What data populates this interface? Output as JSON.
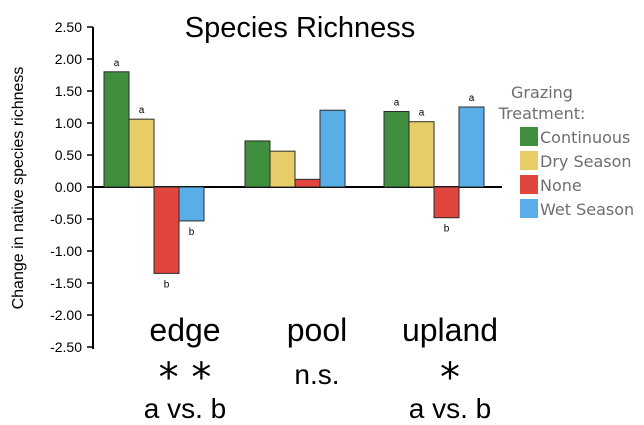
{
  "chart_data": {
    "type": "bar",
    "title": "Species Richness",
    "ylabel": "Change in native species richness",
    "xlabel": "",
    "ylim": [
      -2.5,
      2.5
    ],
    "yticks": [
      "2.50",
      "2.00",
      "1.50",
      "1.00",
      "0.50",
      "0.00",
      "-0.50",
      "-1.00",
      "-1.50",
      "-2.00",
      "-2.50"
    ],
    "ytick_values": [
      2.5,
      2.0,
      1.5,
      1.0,
      0.5,
      0.0,
      -0.5,
      -1.0,
      -1.5,
      -2.0,
      -2.5
    ],
    "categories": [
      "edge",
      "pool",
      "upland"
    ],
    "legend": {
      "title": "Grazing Treatment:",
      "placement": "right"
    },
    "series": [
      {
        "name": "Continuous",
        "color": "#3f8f3f",
        "values": [
          1.8,
          0.72,
          1.18
        ],
        "sig": [
          "a",
          "",
          "a"
        ]
      },
      {
        "name": "Dry Season",
        "color": "#e8cc68",
        "values": [
          1.06,
          0.56,
          1.02
        ],
        "sig": [
          "a",
          "",
          "a"
        ]
      },
      {
        "name": "None",
        "color": "#e0453e",
        "values": [
          -1.35,
          0.12,
          -0.48
        ],
        "sig": [
          "b",
          "",
          "b"
        ]
      },
      {
        "name": "Wet Season",
        "color": "#5aaee8",
        "values": [
          -0.53,
          1.2,
          1.25
        ],
        "sig": [
          "b",
          "",
          "a"
        ]
      }
    ],
    "group_annotations": [
      {
        "stars": "**",
        "text": "a vs. b"
      },
      {
        "stars": "",
        "text": "n.s."
      },
      {
        "stars": "*",
        "text": "a vs. b"
      }
    ],
    "grid": false
  }
}
